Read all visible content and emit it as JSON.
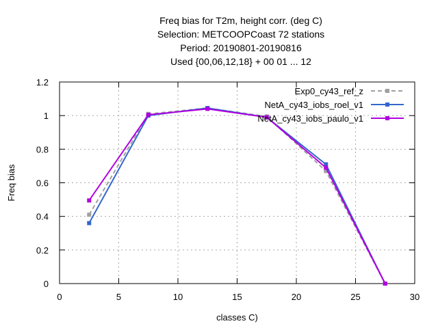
{
  "chart_data": {
    "type": "line",
    "title_lines": [
      "Freq bias  for T2m, height corr. (deg C)",
      "Selection: METCOOPCoast     72 stations",
      "Period: 20190801-20190816",
      "Used {00,06,12,18} + 00 01 ... 12"
    ],
    "xlabel": "classes C)",
    "ylabel": "Freq bias",
    "xlim": [
      0,
      30
    ],
    "ylim": [
      0,
      1.2
    ],
    "x_ticks": [
      "0",
      "5",
      "10",
      "15",
      "20",
      "25",
      "30"
    ],
    "y_ticks": [
      "0",
      "0.2",
      "0.4",
      "0.6",
      "0.8",
      "1",
      "1.2"
    ],
    "grid": true,
    "legend_position": "top-right",
    "series": [
      {
        "name": "Exp0_cy43_ref_z",
        "color": "#a0a0a0",
        "dash": "dashed",
        "x": [
          2.5,
          7.5,
          12.5,
          17.5,
          22.5,
          27.5
        ],
        "y": [
          0.41,
          1.01,
          1.045,
          0.995,
          0.67,
          0.0
        ]
      },
      {
        "name": "NetA_cy43_iobs_roel_v1",
        "color": "#3366cc",
        "dash": "solid",
        "x": [
          2.5,
          7.5,
          12.5,
          17.5,
          22.5,
          27.5
        ],
        "y": [
          0.36,
          1.0,
          1.045,
          0.99,
          0.71,
          0.0
        ]
      },
      {
        "name": "NetA_cy43_iobs_paulo_v1",
        "color": "#b000e0",
        "dash": "solid",
        "x": [
          2.5,
          7.5,
          12.5,
          17.5,
          22.5,
          27.5
        ],
        "y": [
          0.495,
          1.005,
          1.04,
          0.99,
          0.69,
          0.0
        ]
      }
    ]
  }
}
